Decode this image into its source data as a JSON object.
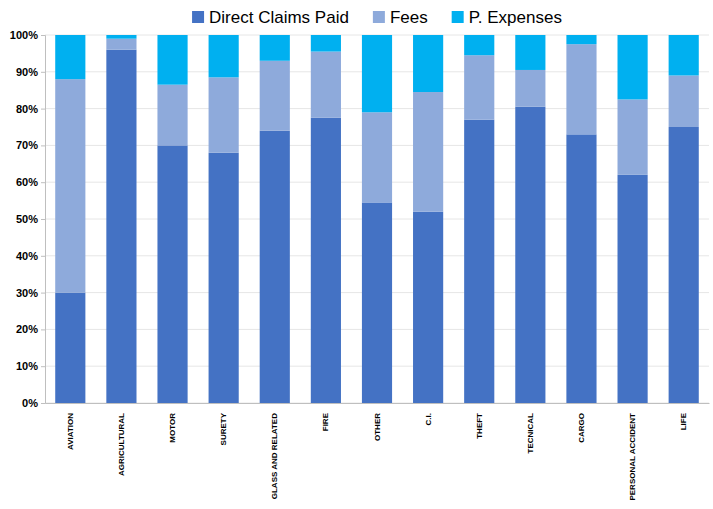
{
  "chart_data": {
    "type": "bar",
    "stacked": true,
    "grid": true,
    "legend": "top",
    "categories": [
      "AVIATION",
      "AGRICULTURAL",
      "MOTOR",
      "SURETY",
      "GLASS AND RELATED",
      "FIRE",
      "OTHER",
      "C.I.",
      "THEFT",
      "TECNICAL",
      "CARGO",
      "PERSONAL ACCIDENT",
      "LIFE"
    ],
    "series": [
      {
        "name": "Direct Claims Paid",
        "color": "#4472c4",
        "values": [
          30,
          96,
          70,
          68,
          74,
          77.5,
          54.5,
          52,
          77,
          80.5,
          73,
          62,
          75
        ]
      },
      {
        "name": "Fees",
        "color": "#8eaadb",
        "values": [
          58,
          3,
          16.5,
          20.5,
          19,
          18,
          24.5,
          32.5,
          17.5,
          10,
          24.5,
          20.5,
          14
        ]
      },
      {
        "name": "P. Expenses",
        "color": "#00b0f0",
        "values": [
          12,
          1,
          13.5,
          11.5,
          7,
          4.5,
          21,
          15.5,
          5.5,
          9.5,
          2.5,
          17.5,
          11
        ]
      }
    ],
    "ylim": [
      0,
      100
    ],
    "yticks": [
      {
        "value": 0,
        "label": "0%"
      },
      {
        "value": 10,
        "label": "10%"
      },
      {
        "value": 20,
        "label": "20%"
      },
      {
        "value": 30,
        "label": "30%"
      },
      {
        "value": 40,
        "label": "40%"
      },
      {
        "value": 50,
        "label": "50%"
      },
      {
        "value": 60,
        "label": "60%"
      },
      {
        "value": 70,
        "label": "70%"
      },
      {
        "value": 80,
        "label": "80%"
      },
      {
        "value": 90,
        "label": "90%"
      },
      {
        "value": 100,
        "label": "100%"
      }
    ]
  }
}
